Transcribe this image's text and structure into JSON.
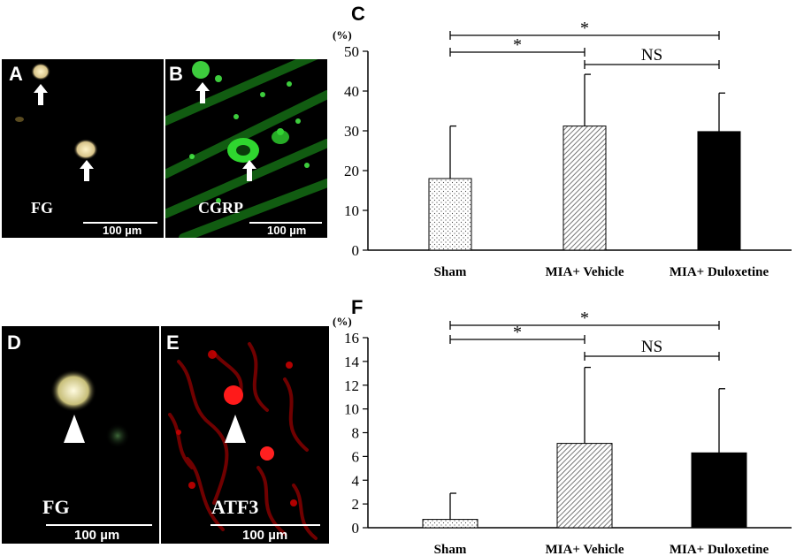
{
  "micrographs": [
    {
      "letter": "A",
      "stain": "FG",
      "scale": "100 µm"
    },
    {
      "letter": "B",
      "stain": "CGRP",
      "scale": "100 µm"
    },
    {
      "letter": "D",
      "stain": "FG",
      "scale": "100 µm"
    },
    {
      "letter": "E",
      "stain": "ATF3",
      "scale": "100 µm"
    }
  ],
  "chart_data": [
    {
      "type": "bar",
      "panel": "C",
      "ylabel": "(%)",
      "categories": [
        "Sham",
        "MIA+ Vehicle",
        "MIA+ Duloxetine"
      ],
      "values": [
        18,
        31.2,
        29.8
      ],
      "errors": [
        13.2,
        13.0,
        9.7
      ],
      "ylim": [
        0,
        50
      ],
      "yticks": [
        0,
        10,
        20,
        30,
        40,
        50
      ],
      "bar_fills": [
        "dots",
        "hatch",
        "solid"
      ],
      "brackets": [
        {
          "from": 0,
          "to": 2,
          "label": "*"
        },
        {
          "from": 0,
          "to": 1,
          "label": "*"
        },
        {
          "from": 1,
          "to": 2,
          "label": "NS"
        }
      ]
    },
    {
      "type": "bar",
      "panel": "F",
      "ylabel": "(%)",
      "categories": [
        "Sham",
        "MIA+ Vehicle",
        "MIA+ Duloxetine"
      ],
      "values": [
        0.7,
        7.1,
        6.3
      ],
      "errors": [
        2.2,
        6.4,
        5.4
      ],
      "ylim": [
        0,
        16
      ],
      "yticks": [
        0,
        2,
        4,
        6,
        8,
        10,
        12,
        14,
        16
      ],
      "bar_fills": [
        "dots",
        "hatch",
        "solid"
      ],
      "brackets": [
        {
          "from": 0,
          "to": 2,
          "label": "*"
        },
        {
          "from": 0,
          "to": 1,
          "label": "*"
        },
        {
          "from": 1,
          "to": 2,
          "label": "NS"
        }
      ]
    }
  ]
}
